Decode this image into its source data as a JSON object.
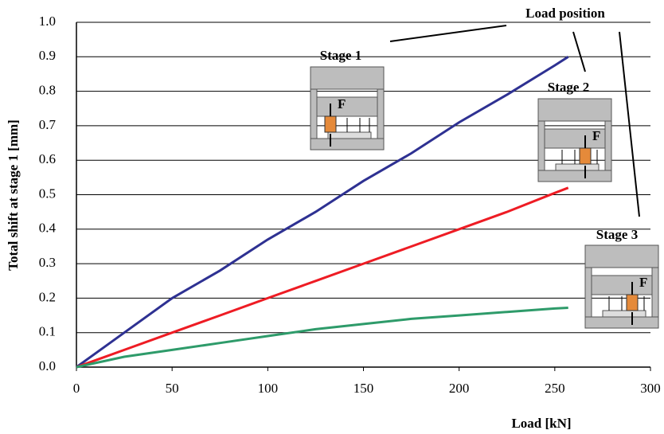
{
  "chart_data": {
    "type": "line",
    "x_label": "Load [kN]",
    "y_label": "Total shift at stage 1 [mm]",
    "xlim": [
      0,
      300
    ],
    "xticks": [
      0,
      50,
      100,
      150,
      200,
      250,
      300
    ],
    "ylim": [
      0,
      1
    ],
    "yticks": [
      {
        "value": 0,
        "label": "0.0"
      },
      0.1,
      0.2,
      0.3,
      0.4,
      0.5,
      0.6,
      0.7,
      0.8,
      0.9,
      {
        "value": 1,
        "label": "1.0"
      }
    ],
    "grid": true,
    "series": [
      {
        "name": "Stage 1",
        "color": "#2e3192",
        "x": [
          0,
          25,
          50,
          75,
          100,
          125,
          150,
          175,
          200,
          225,
          250,
          257
        ],
        "values": [
          0,
          0.1,
          0.2,
          0.28,
          0.37,
          0.45,
          0.54,
          0.62,
          0.71,
          0.79,
          0.875,
          0.9
        ]
      },
      {
        "name": "Stage 2",
        "color": "#ee1c24",
        "x": [
          0,
          25,
          50,
          75,
          100,
          125,
          150,
          175,
          200,
          225,
          250,
          257
        ],
        "values": [
          0,
          0.05,
          0.1,
          0.15,
          0.2,
          0.25,
          0.3,
          0.35,
          0.4,
          0.45,
          0.505,
          0.52
        ]
      },
      {
        "name": "Stage 3",
        "color": "#2e9b6a",
        "x": [
          0,
          25,
          50,
          75,
          100,
          125,
          150,
          175,
          200,
          225,
          250,
          257
        ],
        "values": [
          0,
          0.03,
          0.05,
          0.07,
          0.09,
          0.11,
          0.125,
          0.14,
          0.15,
          0.16,
          0.17,
          0.172
        ]
      }
    ],
    "annotation": "Load position",
    "force_labels": [
      "F",
      "F",
      "F"
    ]
  }
}
